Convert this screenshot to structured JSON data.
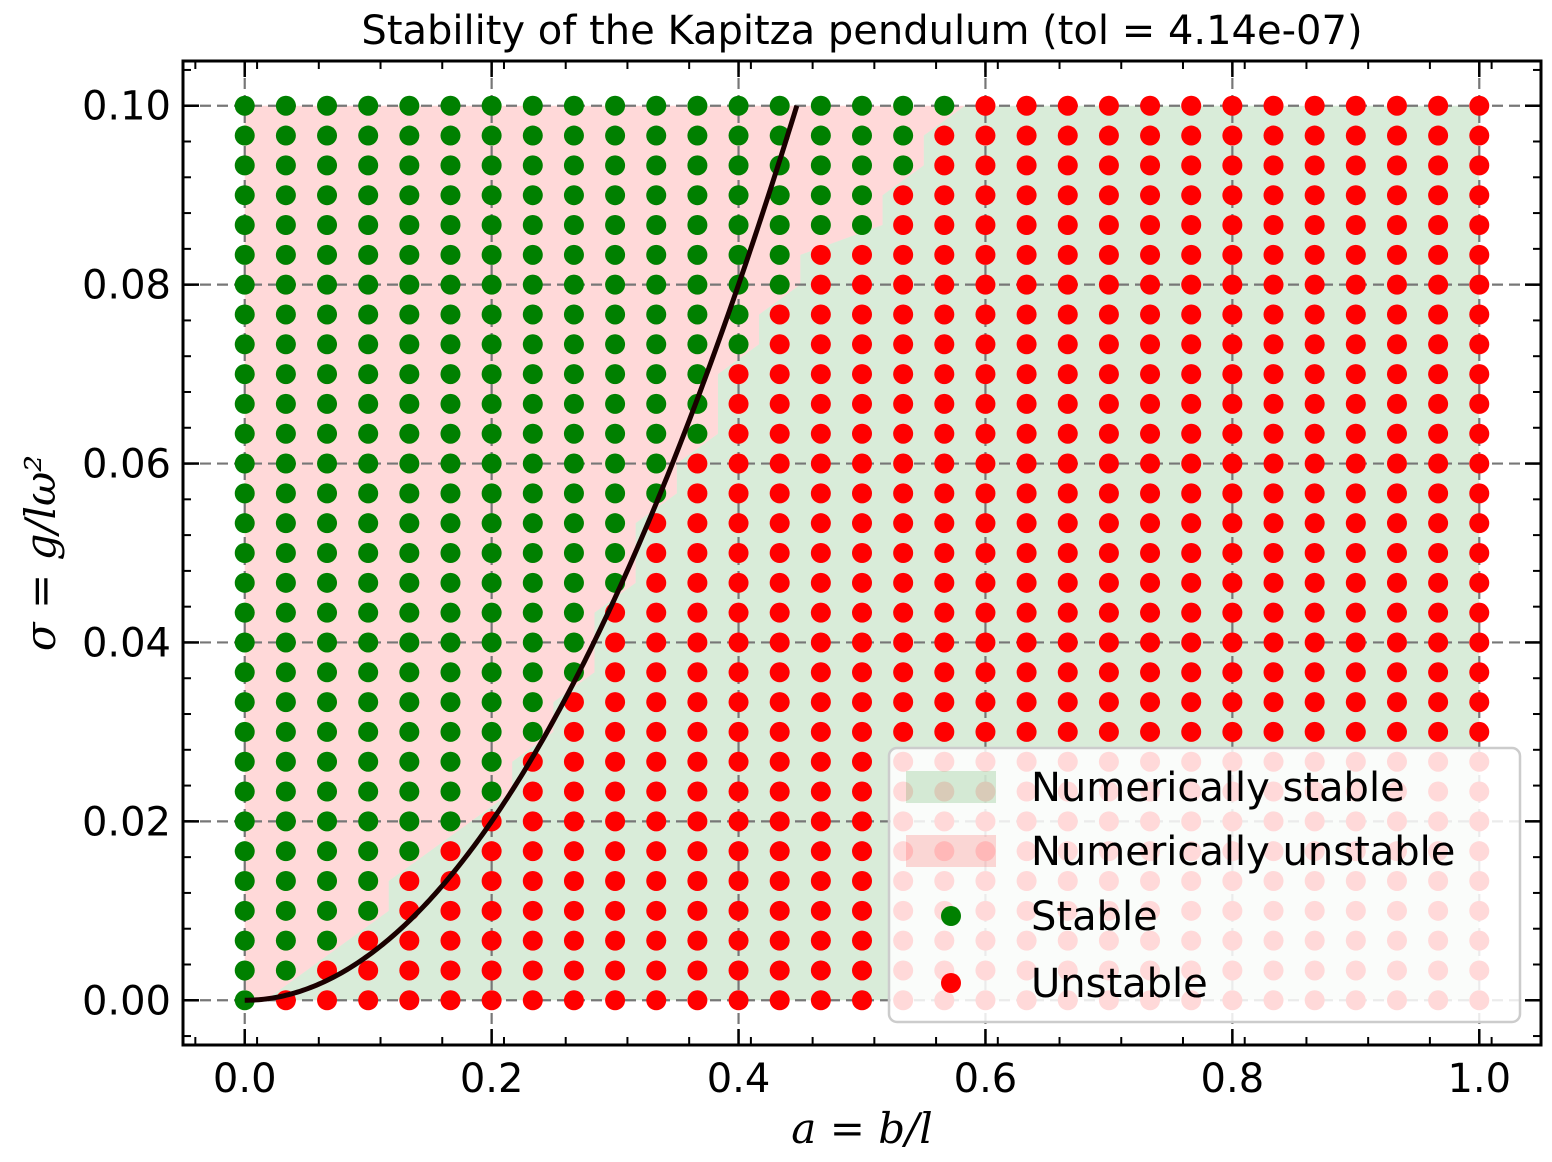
{
  "chart_data": {
    "type": "scatter",
    "title": "Stability of the Kapitza pendulum (tol = 4.14e-07)",
    "xlabel": "a = b/l",
    "ylabel": "σ = g/lω²",
    "xlim": [
      -0.05,
      1.05
    ],
    "ylim": [
      -0.005,
      0.105
    ],
    "xticks": [
      "0.0",
      "0.2",
      "0.4",
      "0.6",
      "0.8",
      "1.0"
    ],
    "yticks": [
      "0.00",
      "0.02",
      "0.04",
      "0.06",
      "0.08",
      "0.10"
    ],
    "grid": true,
    "legend_position": "lower-right",
    "grid_x": {
      "start": 0.0,
      "step": 0.0333333,
      "count": 31
    },
    "grid_y": {
      "start": 0.0,
      "step": 0.0033333,
      "count": 31
    },
    "unstable_threshold_x_per_row": [
      0.0333,
      0.0667,
      0.1,
      0.1333,
      0.1333,
      0.1667,
      0.2,
      0.2333,
      0.2333,
      0.2667,
      0.2667,
      0.3,
      0.3,
      0.3,
      0.3333,
      0.3333,
      0.3333,
      0.3667,
      0.3667,
      0.4,
      0.4,
      0.4,
      0.4333,
      0.4333,
      0.4667,
      0.4667,
      0.5333,
      0.5333,
      0.5667,
      0.5667,
      0.6
    ],
    "boundary_curve": {
      "formula": "sigma = a^2 / 2",
      "x_range": [
        0.0,
        0.4472
      ]
    },
    "series": [
      {
        "name": "Stable",
        "color": "#008000",
        "marker": "circle"
      },
      {
        "name": "Unstable",
        "color": "#ff0000",
        "marker": "circle"
      }
    ],
    "regions": [
      {
        "name": "Numerically stable",
        "color": "#008000",
        "alpha": 0.15
      },
      {
        "name": "Numerically unstable",
        "color": "#ff0000",
        "alpha": 0.15
      }
    ],
    "legend": [
      "Numerically stable",
      "Numerically unstable",
      "Stable",
      "Unstable"
    ]
  }
}
